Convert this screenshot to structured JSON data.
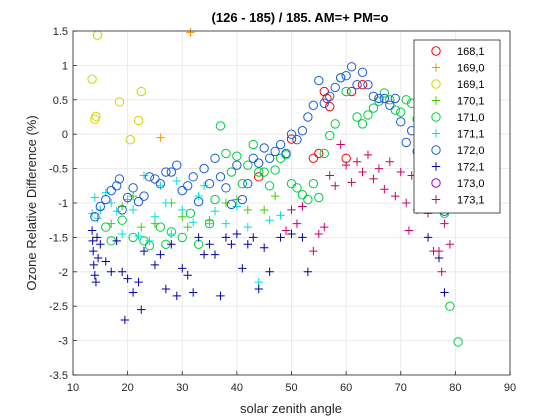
{
  "chart_data": {
    "type": "scatter",
    "title": "(126 - 185) / 185.  AM=+ PM=o",
    "xlabel": "solar zenith angle",
    "ylabel": "Ozone Relative Difference (%)",
    "xlim": [
      10,
      90
    ],
    "ylim": [
      -3.5,
      1.5
    ],
    "xticks": [
      10,
      20,
      30,
      40,
      50,
      60,
      70,
      80,
      90
    ],
    "yticks": [
      1.5,
      1,
      0.5,
      0,
      -0.5,
      -1,
      -1.5,
      -2,
      -2.5,
      -3,
      -3.5
    ],
    "xtick_labels": [
      "10",
      "20",
      "30",
      "40",
      "50",
      "60",
      "70",
      "80",
      "90"
    ],
    "ytick_labels": [
      "1.5",
      "1",
      "0.5",
      "0",
      "-0.5",
      "-1",
      "-1.5",
      "-2",
      "-2.5",
      "-3",
      "-3.5"
    ],
    "grid": true,
    "legend_position": "top-right",
    "series": [
      {
        "name": "168,1",
        "marker": "o",
        "color": "#ff0000",
        "points": [
          [
            44,
            -0.62
          ],
          [
            50,
            -0.07
          ],
          [
            54,
            -0.35
          ],
          [
            55,
            -0.28
          ],
          [
            56,
            0.62
          ],
          [
            56.5,
            0.52
          ],
          [
            57,
            0.4
          ],
          [
            61,
            0.62
          ],
          [
            60,
            -0.35
          ],
          [
            63,
            0.72
          ]
        ]
      },
      {
        "name": "169,0",
        "marker": "+",
        "color": "#ff8c00",
        "points": [
          [
            31.5,
            1.48
          ],
          [
            26,
            -0.05
          ]
        ]
      },
      {
        "name": "169,1",
        "marker": "o",
        "color": "#d4d400",
        "points": [
          [
            14.5,
            1.44
          ],
          [
            13.5,
            0.8
          ],
          [
            14,
            0.22
          ],
          [
            14.2,
            0.26
          ],
          [
            18.5,
            0.47
          ],
          [
            22.5,
            0.62
          ],
          [
            22,
            0.2
          ],
          [
            20.5,
            -0.08
          ]
        ]
      },
      {
        "name": "170,1",
        "marker": "+",
        "color": "#44cc00",
        "points": [
          [
            17,
            -1.3
          ],
          [
            19,
            -1.05
          ],
          [
            21,
            -0.9
          ],
          [
            22.5,
            -1.35
          ],
          [
            25,
            -1.3
          ],
          [
            28,
            -1.0
          ],
          [
            30,
            -1.2
          ],
          [
            31,
            -1.35
          ],
          [
            35,
            -1.25
          ],
          [
            38,
            -1.0
          ],
          [
            40,
            -0.95
          ],
          [
            42,
            -1.1
          ],
          [
            45,
            -1.1
          ],
          [
            47,
            -0.9
          ]
        ]
      },
      {
        "name": "171,0",
        "marker": "o",
        "color": "#00cc44",
        "points": [
          [
            16,
            -1.35
          ],
          [
            17,
            -1.55
          ],
          [
            19,
            -1.25
          ],
          [
            21,
            -1.5
          ],
          [
            23,
            -1.55
          ],
          [
            24,
            -1.62
          ],
          [
            26,
            -1.35
          ],
          [
            27,
            -1.6
          ],
          [
            28,
            -1.42
          ],
          [
            30,
            -1.5
          ],
          [
            31.5,
            -1.15
          ],
          [
            33,
            -1.6
          ],
          [
            35,
            -1.3
          ],
          [
            36,
            -0.95
          ],
          [
            37,
            0.12
          ],
          [
            38,
            -0.28
          ],
          [
            39,
            -0.55
          ],
          [
            40,
            -0.32
          ],
          [
            41,
            -0.72
          ],
          [
            42,
            -0.45
          ],
          [
            43,
            -0.15
          ],
          [
            44,
            -0.55
          ],
          [
            45,
            -0.55
          ],
          [
            46,
            -0.75
          ],
          [
            47,
            -0.52
          ],
          [
            48,
            -0.35
          ],
          [
            49,
            -0.3
          ],
          [
            50,
            -0.72
          ],
          [
            51,
            -0.78
          ],
          [
            52,
            -0.88
          ],
          [
            53,
            -0.95
          ],
          [
            54,
            -0.72
          ],
          [
            55,
            -0.92
          ],
          [
            56,
            -0.28
          ],
          [
            57,
            -0.02
          ],
          [
            58,
            0.15
          ],
          [
            59,
            0.82
          ],
          [
            60,
            0.62
          ],
          [
            62,
            0.25
          ],
          [
            63,
            0.15
          ],
          [
            64,
            0.28
          ],
          [
            65,
            0.38
          ],
          [
            66,
            0.48
          ],
          [
            67,
            0.6
          ],
          [
            68,
            0.5
          ],
          [
            69,
            0.35
          ],
          [
            70,
            0.32
          ],
          [
            71,
            0.5
          ],
          [
            72,
            0.45
          ],
          [
            73,
            0.22
          ],
          [
            74,
            0.18
          ],
          [
            75,
            -0.22
          ],
          [
            76,
            -0.52
          ],
          [
            77,
            -0.78
          ],
          [
            78,
            -1.15
          ],
          [
            79,
            -2.5
          ],
          [
            80.5,
            -3.02
          ]
        ]
      },
      {
        "name": "171,1",
        "marker": "+",
        "color": "#00e0e0",
        "points": [
          [
            13.5,
            -1.15
          ],
          [
            14,
            -0.92
          ],
          [
            14.5,
            -1.22
          ],
          [
            15,
            -1.1
          ],
          [
            16,
            -0.85
          ],
          [
            17,
            -1.0
          ],
          [
            18,
            -1.12
          ],
          [
            19,
            -1.45
          ],
          [
            20,
            -0.95
          ],
          [
            21,
            -1.1
          ],
          [
            22,
            -1.48
          ],
          [
            23,
            -0.6
          ],
          [
            24,
            -1.55
          ],
          [
            25,
            -1.2
          ],
          [
            26,
            -0.75
          ],
          [
            27,
            -1.0
          ],
          [
            28,
            -1.45
          ],
          [
            29,
            -0.68
          ],
          [
            30,
            -1.1
          ],
          [
            32,
            -1.28
          ],
          [
            33,
            -0.9
          ],
          [
            34,
            -0.75
          ],
          [
            35,
            -1.3
          ],
          [
            36,
            -1.12
          ],
          [
            38,
            -1.3
          ],
          [
            40,
            -1.05
          ],
          [
            42,
            -1.35
          ],
          [
            44,
            -2.15
          ],
          [
            46,
            -1.25
          ],
          [
            48,
            -1.18
          ]
        ]
      },
      {
        "name": "172,0",
        "marker": "o",
        "color": "#1a5cd8",
        "points": [
          [
            14,
            -1.2
          ],
          [
            15,
            -1.05
          ],
          [
            16,
            -0.95
          ],
          [
            17,
            -0.82
          ],
          [
            18,
            -0.75
          ],
          [
            18.5,
            -0.65
          ],
          [
            19,
            -1.1
          ],
          [
            20,
            -0.92
          ],
          [
            21,
            -0.78
          ],
          [
            22,
            -0.98
          ],
          [
            23,
            -0.9
          ],
          [
            24,
            -0.62
          ],
          [
            25,
            -0.65
          ],
          [
            26,
            -0.72
          ],
          [
            27,
            -0.55
          ],
          [
            28,
            -0.55
          ],
          [
            29,
            -0.45
          ],
          [
            30,
            -0.82
          ],
          [
            31,
            -0.75
          ],
          [
            32,
            -0.62
          ],
          [
            33,
            -0.98
          ],
          [
            34,
            -0.5
          ],
          [
            35,
            -0.72
          ],
          [
            36,
            -0.35
          ],
          [
            37,
            -0.62
          ],
          [
            38,
            -0.78
          ],
          [
            39,
            -1.02
          ],
          [
            40,
            -0.45
          ],
          [
            41,
            -0.95
          ],
          [
            42,
            -0.72
          ],
          [
            43,
            -0.35
          ],
          [
            44,
            -0.42
          ],
          [
            45,
            -0.2
          ],
          [
            46,
            -0.35
          ],
          [
            47,
            -0.25
          ],
          [
            48,
            -0.15
          ],
          [
            49,
            -0.28
          ],
          [
            50,
            0.0
          ],
          [
            51,
            -0.08
          ],
          [
            52,
            0.05
          ],
          [
            53,
            0.25
          ],
          [
            54,
            0.42
          ],
          [
            55,
            0.78
          ],
          [
            56,
            0.45
          ],
          [
            57,
            0.55
          ],
          [
            58,
            0.68
          ],
          [
            59,
            0.82
          ],
          [
            60,
            0.85
          ],
          [
            61,
            0.98
          ],
          [
            62,
            0.72
          ],
          [
            63,
            0.9
          ],
          [
            64,
            0.72
          ],
          [
            65,
            0.55
          ],
          [
            66,
            0.52
          ],
          [
            67,
            0.52
          ],
          [
            68,
            0.42
          ],
          [
            69,
            0.52
          ],
          [
            70,
            0.18
          ],
          [
            71,
            -0.12
          ],
          [
            72,
            0.05
          ],
          [
            73,
            -0.25
          ],
          [
            74,
            -0.38
          ],
          [
            75,
            -0.75
          ],
          [
            76,
            -0.62
          ],
          [
            77,
            -0.85
          ],
          [
            78,
            -1.12
          ]
        ]
      },
      {
        "name": "172,1",
        "marker": "+",
        "color": "#0000aa",
        "points": [
          [
            13.5,
            -1.4
          ],
          [
            13.6,
            -1.55
          ],
          [
            13.7,
            -1.7
          ],
          [
            13.8,
            -1.9
          ],
          [
            14,
            -2.05
          ],
          [
            14.2,
            -2.15
          ],
          [
            14.4,
            -1.5
          ],
          [
            14.6,
            -1.8
          ],
          [
            15,
            -1.6
          ],
          [
            16,
            -1.85
          ],
          [
            17,
            -2.0
          ],
          [
            18,
            -1.55
          ],
          [
            19,
            -2.0
          ],
          [
            19.5,
            -2.7
          ],
          [
            20,
            -2.1
          ],
          [
            21,
            -2.3
          ],
          [
            22,
            -2.15
          ],
          [
            22.5,
            -2.55
          ],
          [
            23,
            -1.7
          ],
          [
            25,
            -1.9
          ],
          [
            26,
            -1.75
          ],
          [
            27,
            -2.25
          ],
          [
            28,
            -1.6
          ],
          [
            29,
            -2.35
          ],
          [
            30,
            -1.95
          ],
          [
            31,
            -2.05
          ],
          [
            32,
            -2.3
          ],
          [
            33,
            -1.5
          ],
          [
            34,
            -1.75
          ],
          [
            35,
            -1.6
          ],
          [
            36,
            -1.75
          ],
          [
            37,
            -2.35
          ],
          [
            38,
            -1.5
          ],
          [
            39,
            -1.6
          ],
          [
            40,
            -1.45
          ],
          [
            41,
            -1.95
          ],
          [
            42,
            -1.6
          ],
          [
            43,
            -1.5
          ],
          [
            44,
            -2.25
          ],
          [
            45,
            -1.65
          ],
          [
            46,
            -2.0
          ],
          [
            48,
            -1.5
          ],
          [
            50,
            -1.45
          ],
          [
            52,
            -1.5
          ],
          [
            53,
            -2.0
          ],
          [
            75,
            -1.5
          ],
          [
            77,
            -1.8
          ],
          [
            78,
            -2.3
          ]
        ]
      },
      {
        "name": "173,0",
        "marker": "o",
        "color": "#9900cc",
        "points": []
      },
      {
        "name": "173,1",
        "marker": "+",
        "color": "#cc0066",
        "points": [
          [
            49,
            -1.4
          ],
          [
            50,
            -1.1
          ],
          [
            51,
            -1.3
          ],
          [
            52,
            -1.05
          ],
          [
            54,
            -1.7
          ],
          [
            55,
            -1.45
          ],
          [
            56,
            -1.35
          ],
          [
            57,
            -0.6
          ],
          [
            58,
            -0.75
          ],
          [
            59,
            -0.15
          ],
          [
            60,
            -0.45
          ],
          [
            61,
            -0.7
          ],
          [
            62,
            -0.4
          ],
          [
            63,
            -0.55
          ],
          [
            64,
            -0.3
          ],
          [
            65,
            -0.65
          ],
          [
            66,
            -0.5
          ],
          [
            67,
            -0.8
          ],
          [
            68,
            -0.4
          ],
          [
            69,
            -0.9
          ],
          [
            70,
            -0.55
          ],
          [
            71,
            -1.0
          ],
          [
            71.5,
            -1.4
          ],
          [
            72,
            -0.6
          ],
          [
            73,
            -1.1
          ],
          [
            74,
            -0.85
          ],
          [
            75,
            -1.15
          ],
          [
            76,
            -1.7
          ],
          [
            77,
            -1.7
          ],
          [
            77.5,
            -2.0
          ],
          [
            78,
            -1.3
          ],
          [
            79,
            -1.6
          ]
        ]
      }
    ]
  }
}
